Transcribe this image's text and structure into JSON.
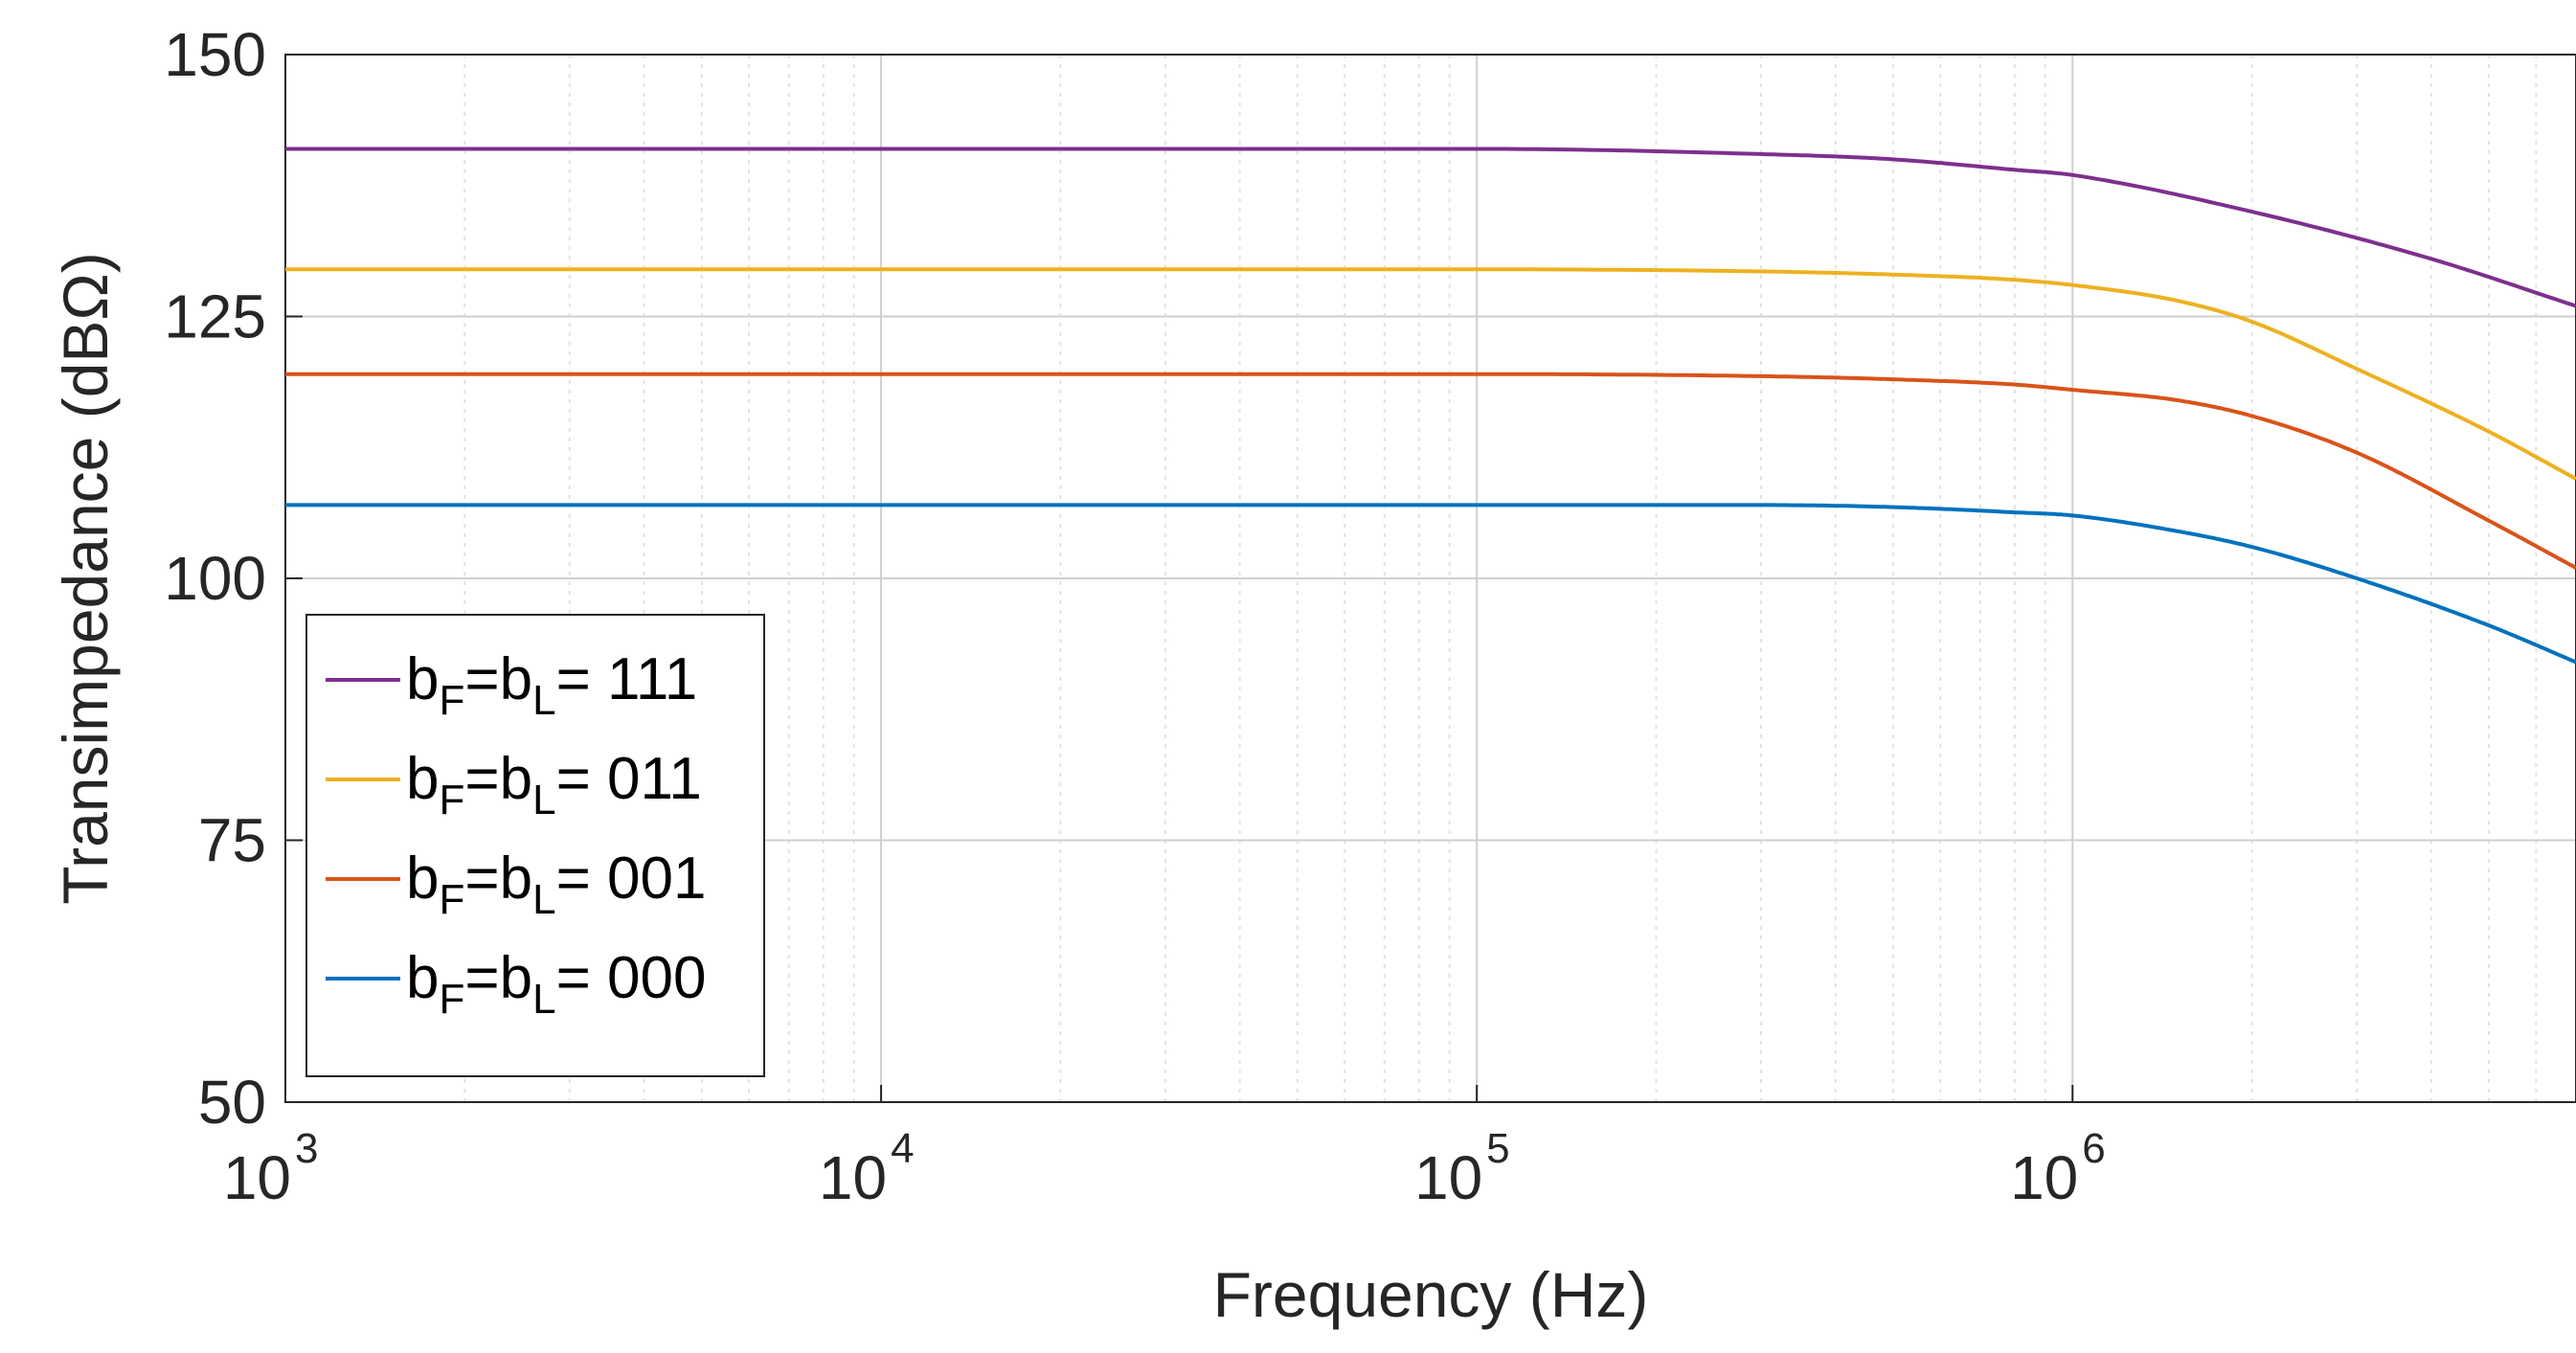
{
  "chart_data": {
    "type": "line",
    "xscale": "log",
    "xlabel": "Frequency (Hz)",
    "ylabel": "Transimpedance (dBΩ)",
    "xlim": [
      1000,
      7000000
    ],
    "ylim": [
      50,
      150
    ],
    "yticks": [
      50,
      75,
      100,
      125,
      150
    ],
    "xticks": [
      {
        "value": 1000,
        "base": "10",
        "exp": "3"
      },
      {
        "value": 10000,
        "base": "10",
        "exp": "4"
      },
      {
        "value": 100000,
        "base": "10",
        "exp": "5"
      },
      {
        "value": 1000000,
        "base": "10",
        "exp": "6"
      }
    ],
    "grid": true,
    "legend_position": "bottom-left",
    "series": [
      {
        "name": "b_F=b_L= 111",
        "label": {
          "b": "b",
          "f": "F",
          "eq": "=b",
          "l": "L",
          "code": "= 111"
        },
        "color": "#7E2F8E",
        "x": [
          1000,
          10000,
          100000,
          300000,
          500000,
          800000,
          1000000,
          2000000,
          4000000,
          7000000
        ],
        "y": [
          141,
          141,
          141,
          140.5,
          140,
          139,
          138.5,
          135,
          130.5,
          126
        ]
      },
      {
        "name": "b_F=b_L= 011",
        "label": {
          "b": "b",
          "f": "F",
          "eq": "=b",
          "l": "L",
          "code": "= 011"
        },
        "color": "#EDB120",
        "x": [
          1000,
          10000,
          100000,
          300000,
          500000,
          800000,
          1000000,
          1500000,
          2000000,
          3000000,
          5000000,
          7000000
        ],
        "y": [
          129.5,
          129.5,
          129.5,
          129.3,
          129,
          128.5,
          128,
          126.5,
          124.5,
          120,
          114,
          109.5
        ]
      },
      {
        "name": "b_F=b_L= 001",
        "label": {
          "b": "b",
          "f": "F",
          "eq": "=b",
          "l": "L",
          "code": "= 001"
        },
        "color": "#D95319",
        "x": [
          1000,
          10000,
          100000,
          300000,
          500000,
          800000,
          1000000,
          1500000,
          2000000,
          3000000,
          5000000,
          7000000
        ],
        "y": [
          119.5,
          119.5,
          119.5,
          119.3,
          119,
          118.5,
          118,
          117,
          115.5,
          112,
          105.5,
          101
        ]
      },
      {
        "name": "b_F=b_L= 000",
        "label": {
          "b": "b",
          "f": "F",
          "eq": "=b",
          "l": "L",
          "code": "= 000"
        },
        "color": "#0072BD",
        "x": [
          1000,
          10000,
          100000,
          300000,
          500000,
          800000,
          1000000,
          1500000,
          2000000,
          3000000,
          5000000,
          7000000
        ],
        "y": [
          107,
          107,
          107,
          107,
          106.8,
          106.3,
          106,
          104.5,
          103,
          100,
          95.5,
          92
        ]
      }
    ]
  }
}
